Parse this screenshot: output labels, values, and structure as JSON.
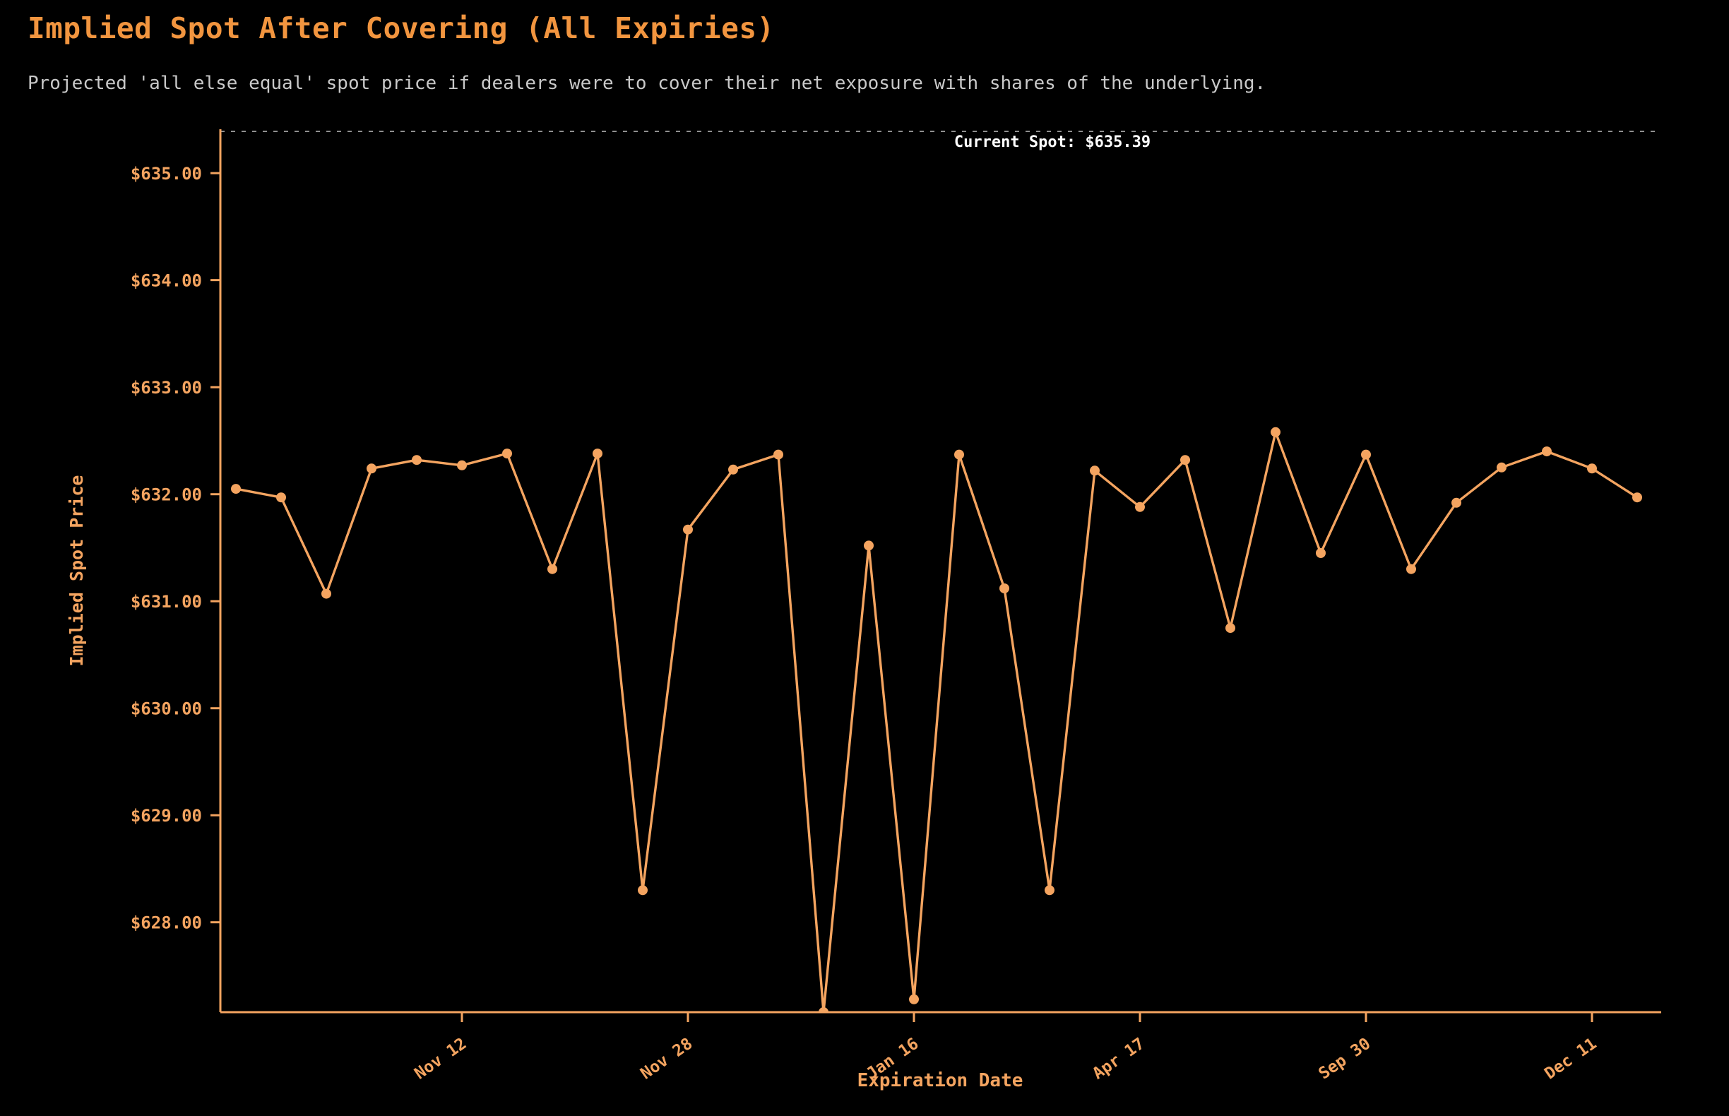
{
  "header": {
    "title": "Implied Spot After Covering (All Expiries)",
    "subtitle": "Projected 'all else equal' spot price if dealers were to cover their net exposure with shares of the underlying."
  },
  "chart_data": {
    "type": "line",
    "title": "Implied Spot After Covering (All Expiries)",
    "subtitle": "Projected 'all else equal' spot price if dealers were to cover their net exposure with shares of the underlying.",
    "xlabel": "Expiration Date",
    "ylabel": "Implied Spot Price",
    "series_name": "Implied spot after covering",
    "num_points": 32,
    "values": [
      632.05,
      631.97,
      631.07,
      632.24,
      632.32,
      632.27,
      632.38,
      631.3,
      632.38,
      628.3,
      631.67,
      632.23,
      632.37,
      627.16,
      631.52,
      627.28,
      632.37,
      631.12,
      628.3,
      632.22,
      631.88,
      632.32,
      630.75,
      632.58,
      631.45,
      632.37,
      631.3,
      631.92,
      632.25,
      632.4,
      632.24,
      631.97
    ],
    "x_tick_indices": [
      5,
      10,
      15,
      20,
      25,
      30
    ],
    "x_tick_labels": [
      "Nov 12",
      "Nov 28",
      "Jan 16",
      "Apr 17",
      "Sep 30",
      "Dec 11"
    ],
    "y_ticks": [
      628,
      629,
      630,
      631,
      632,
      633,
      634,
      635
    ],
    "y_tick_labels": [
      "$628.00",
      "$629.00",
      "$630.00",
      "$631.00",
      "$632.00",
      "$633.00",
      "$634.00",
      "$635.00"
    ],
    "ylim": [
      627.16,
      635.41
    ],
    "current_spot": 635.39,
    "annotation": "Current Spot: $635.39",
    "grid": false,
    "legend": "none",
    "colors": {
      "background": "#000000",
      "line": "#f4a460",
      "marker": "#f4a460",
      "axis": "#f4a460",
      "title": "#f2953f",
      "subtitle": "#c9c9c9",
      "annotation_text": "#ffffff",
      "reference_line": "#8f8f8f"
    }
  }
}
